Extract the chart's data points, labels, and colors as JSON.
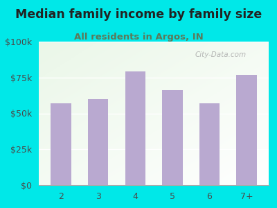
{
  "title": "Median family income by family size",
  "subtitle": "All residents in Argos, IN",
  "categories": [
    "2",
    "3",
    "4",
    "5",
    "6",
    "7+"
  ],
  "values": [
    57000,
    60000,
    79000,
    66000,
    57000,
    77000
  ],
  "bar_color": "#b9a9d0",
  "background_outer": "#00e8e8",
  "title_color": "#222222",
  "subtitle_color": "#5a7a5a",
  "tick_color": "#4a4a4a",
  "ylim": [
    0,
    100000
  ],
  "yticks": [
    0,
    25000,
    50000,
    75000,
    100000
  ],
  "ytick_labels": [
    "$0",
    "$25k",
    "$50k",
    "$75k",
    "$100k"
  ],
  "title_fontsize": 12.5,
  "subtitle_fontsize": 9.5,
  "watermark": "City-Data.com"
}
